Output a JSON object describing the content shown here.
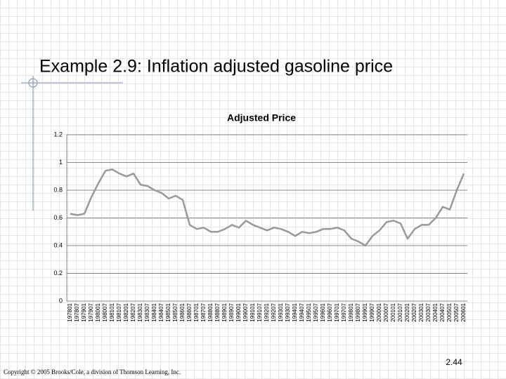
{
  "slide": {
    "title": "Example 2.9: Inflation adjusted gasoline price",
    "copyright": "Copyright © 2005 Brooks/Cole, a division of Thomson Learning, Inc.",
    "page_number": "2.44"
  },
  "chart_data": {
    "type": "line",
    "title": "Adjusted Price",
    "color": "#999999",
    "grid": true,
    "ylim": [
      0,
      1.2
    ],
    "yticks": [
      0,
      0.2,
      0.4,
      0.6,
      0.8,
      1,
      1.2
    ],
    "categories": [
      "197801",
      "197807",
      "197901",
      "197907",
      "198001",
      "198007",
      "198101",
      "198107",
      "198201",
      "198207",
      "198301",
      "198307",
      "198401",
      "198407",
      "198501",
      "198507",
      "198601",
      "198607",
      "198701",
      "198707",
      "198801",
      "198807",
      "198901",
      "198907",
      "199001",
      "199007",
      "199101",
      "199107",
      "199201",
      "199207",
      "199301",
      "199307",
      "199401",
      "199407",
      "199501",
      "199507",
      "199601",
      "199607",
      "199701",
      "199707",
      "199801",
      "199807",
      "199901",
      "199907",
      "200001",
      "200007",
      "200101",
      "200107",
      "200201",
      "200207",
      "200301",
      "200307",
      "200401",
      "200407",
      "200501",
      "200507",
      "200601"
    ],
    "values": [
      0.63,
      0.62,
      0.63,
      0.75,
      0.85,
      0.94,
      0.95,
      0.92,
      0.9,
      0.92,
      0.84,
      0.83,
      0.8,
      0.78,
      0.74,
      0.76,
      0.73,
      0.55,
      0.52,
      0.53,
      0.5,
      0.5,
      0.52,
      0.55,
      0.53,
      0.58,
      0.55,
      0.53,
      0.51,
      0.53,
      0.52,
      0.5,
      0.47,
      0.5,
      0.49,
      0.5,
      0.52,
      0.52,
      0.53,
      0.51,
      0.45,
      0.43,
      0.4,
      0.47,
      0.51,
      0.57,
      0.58,
      0.56,
      0.45,
      0.52,
      0.55,
      0.55,
      0.6,
      0.68,
      0.66,
      0.8,
      0.92
    ]
  }
}
